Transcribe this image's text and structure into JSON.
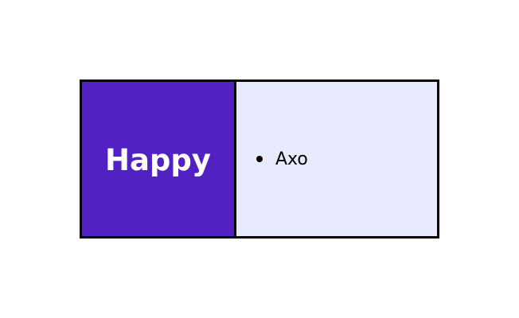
{
  "diagram": {
    "left": {
      "label": "Happy",
      "background": "#5221C4",
      "text_color": "#FFFFFF"
    },
    "right": {
      "background": "#E8EAFE",
      "items": [
        "Axo"
      ]
    },
    "border_color": "#000000"
  }
}
